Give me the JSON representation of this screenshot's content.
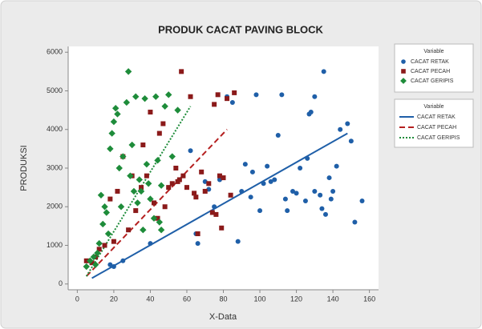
{
  "chart_data": {
    "type": "scatter",
    "title": "PRODUK CACAT PAVING BLOCK",
    "x_label": "X-Data",
    "y_label": "PRODUKSI",
    "xlim": [
      -5,
      165
    ],
    "ylim": [
      -150,
      6150
    ],
    "xticks": [
      0,
      20,
      40,
      60,
      80,
      100,
      120,
      140,
      160
    ],
    "yticks": [
      0,
      1000,
      2000,
      3000,
      4000,
      5000,
      6000
    ],
    "grid": false,
    "legend": "right",
    "legend_title": "Variable",
    "fit_legend_title": "Variable",
    "series": [
      {
        "name": "CACAT RETAK",
        "color": "#1f5fa8",
        "marker": "circle",
        "x": [
          18,
          25,
          20,
          40,
          62,
          65,
          66,
          70,
          72,
          75,
          78,
          82,
          85,
          88,
          90,
          92,
          95,
          96,
          98,
          100,
          102,
          104,
          106,
          108,
          110,
          112,
          114,
          115,
          118,
          120,
          122,
          126,
          127,
          128,
          130,
          130,
          133,
          134,
          135,
          136,
          138,
          139,
          140,
          142,
          144,
          148,
          150,
          152,
          156,
          125
        ],
        "values": [
          500,
          600,
          450,
          1050,
          3450,
          1300,
          1050,
          2650,
          2450,
          2000,
          2700,
          4850,
          4700,
          1100,
          2400,
          3100,
          2250,
          2900,
          4900,
          1900,
          2600,
          3050,
          2650,
          2700,
          3850,
          4900,
          2200,
          1900,
          2400,
          2350,
          3000,
          3250,
          4400,
          4450,
          4850,
          2400,
          2300,
          1950,
          5500,
          1800,
          2750,
          2200,
          2400,
          3050,
          4000,
          4150,
          3700,
          1600,
          2150,
          2150
        ]
      },
      {
        "name": "CACAT PECAH",
        "color": "#8b1a1a",
        "marker": "square",
        "x": [
          5,
          8,
          10,
          12,
          15,
          18,
          20,
          22,
          25,
          28,
          30,
          32,
          35,
          36,
          38,
          40,
          42,
          44,
          45,
          47,
          48,
          50,
          52,
          54,
          55,
          56,
          57,
          58,
          60,
          62,
          64,
          65,
          66,
          68,
          70,
          72,
          74,
          75,
          76,
          77,
          78,
          79,
          80,
          82,
          84,
          86
        ],
        "values": [
          600,
          550,
          700,
          900,
          1000,
          2200,
          1100,
          2400,
          3300,
          1400,
          2800,
          1900,
          2500,
          3600,
          2800,
          4450,
          2100,
          1700,
          3900,
          4150,
          2000,
          2500,
          2600,
          3000,
          2650,
          2700,
          5500,
          2800,
          2500,
          4850,
          2350,
          2250,
          1300,
          2900,
          2400,
          2600,
          1850,
          4650,
          1800,
          4900,
          2800,
          1450,
          2750,
          4800,
          2300,
          4950
        ]
      },
      {
        "name": "CACAT GERIPIS",
        "color": "#1e8c3a",
        "marker": "diamond",
        "x": [
          5,
          7,
          9,
          10,
          11,
          12,
          13,
          14,
          15,
          16,
          17,
          18,
          19,
          20,
          21,
          22,
          23,
          24,
          25,
          27,
          28,
          29,
          30,
          31,
          32,
          33,
          34,
          35,
          36,
          37,
          38,
          39,
          40,
          42,
          43,
          44,
          45,
          46,
          48,
          50,
          52,
          55,
          46
        ],
        "values": [
          450,
          600,
          700,
          500,
          800,
          1050,
          2300,
          1550,
          2000,
          1850,
          1300,
          3500,
          3900,
          4200,
          4550,
          4400,
          3000,
          2000,
          3300,
          4700,
          5500,
          2800,
          3600,
          2400,
          4850,
          2100,
          2700,
          2400,
          1400,
          4800,
          3100,
          2600,
          2200,
          1700,
          4850,
          3200,
          1600,
          2550,
          4600,
          4900,
          3300,
          4500,
          1400
        ]
      }
    ],
    "fits": [
      {
        "name": "CACAT RETAK",
        "color": "#1f5fa8",
        "style": "solid",
        "x": [
          8,
          148
        ],
        "values": [
          150,
          3900
        ]
      },
      {
        "name": "CACAT PECAH",
        "color": "#b52020",
        "style": "dashed",
        "x": [
          5,
          82
        ],
        "values": [
          200,
          4000
        ]
      },
      {
        "name": "CACAT GERIPIS",
        "color": "#1e8c3a",
        "style": "dotted",
        "x": [
          5,
          62
        ],
        "values": [
          200,
          4600
        ]
      }
    ]
  }
}
